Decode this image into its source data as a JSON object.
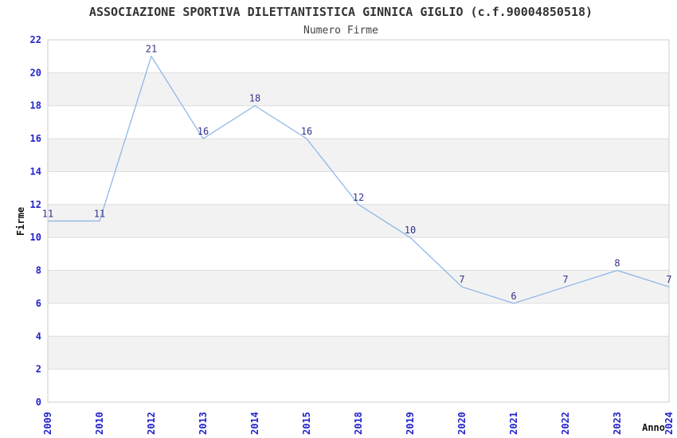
{
  "header": {
    "title": "ASSOCIAZIONE SPORTIVA DILETTANTISTICA GINNICA GIGLIO (c.f.90004850518)",
    "subtitle": "Numero Firme"
  },
  "chart_data": {
    "type": "line",
    "title": "ASSOCIAZIONE SPORTIVA DILETTANTISTICA GINNICA GIGLIO (c.f.90004850518)",
    "subtitle": "Numero Firme",
    "xlabel": "Anno",
    "ylabel": "Firme",
    "categories": [
      "2009",
      "2010",
      "2012",
      "2013",
      "2014",
      "2015",
      "2018",
      "2019",
      "2020",
      "2021",
      "2022",
      "2023",
      "2024"
    ],
    "values": [
      11,
      11,
      21,
      16,
      18,
      16,
      12,
      10,
      7,
      6,
      7,
      8,
      7
    ],
    "ylim": [
      0,
      22
    ],
    "ytick_step": 2,
    "grid": "horizontal-bands",
    "legend": "none",
    "colors": {
      "line": "#88b4e8",
      "band": "#f2f2f2",
      "plot_border": "#cccccc",
      "gridline": "#dedede",
      "tick_label": "#2222cc",
      "data_label": "#333388",
      "axis_title": "#111111",
      "title": "#333333"
    }
  }
}
